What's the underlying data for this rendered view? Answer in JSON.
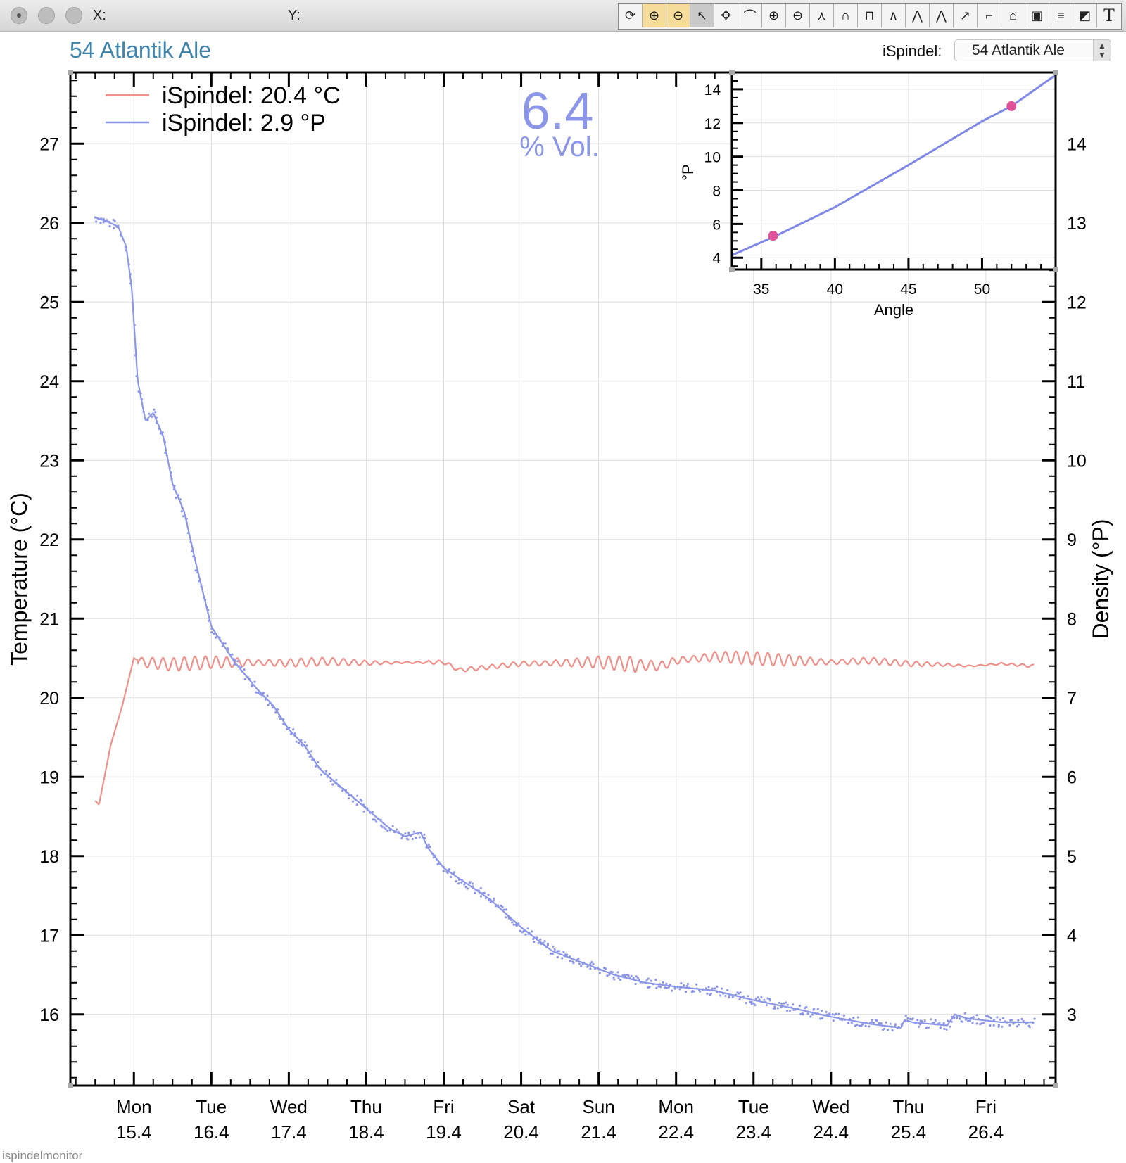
{
  "window": {
    "x_label": "X:",
    "y_label": "Y:",
    "toolbar": [
      {
        "icon": "refresh-icon",
        "glyph": "⟳"
      },
      {
        "icon": "zoom-in-x-icon",
        "glyph": "⊕"
      },
      {
        "icon": "zoom-out-x-icon",
        "glyph": "⊖"
      },
      {
        "icon": "pointer-icon",
        "glyph": "↖"
      },
      {
        "icon": "pan-icon",
        "glyph": "✥"
      },
      {
        "icon": "peak-zoom-icon",
        "glyph": "⌒"
      },
      {
        "icon": "zoom-in-icon",
        "glyph": "⊕"
      },
      {
        "icon": "zoom-out-icon",
        "glyph": "⊖"
      },
      {
        "icon": "fit-peak-icon",
        "glyph": "⋏"
      },
      {
        "icon": "gauss-icon",
        "glyph": "∩"
      },
      {
        "icon": "marker-icon",
        "glyph": "⊓"
      },
      {
        "icon": "peak-icon",
        "glyph": "∧"
      },
      {
        "icon": "peak-split-icon",
        "glyph": "⋀"
      },
      {
        "icon": "peak-sharp-icon",
        "glyph": "⋀"
      },
      {
        "icon": "curve-point-icon",
        "glyph": "↗"
      },
      {
        "icon": "rise-icon",
        "glyph": "⌐"
      },
      {
        "icon": "box-peak-icon",
        "glyph": "⌂"
      },
      {
        "icon": "overlay-icon",
        "glyph": "▣"
      },
      {
        "icon": "legend-icon",
        "glyph": "≡"
      },
      {
        "icon": "shapes-icon",
        "glyph": "◩"
      },
      {
        "icon": "text-icon",
        "glyph": "T"
      }
    ]
  },
  "header": {
    "title": "54 Atlantik Ale",
    "selector_label": "iSpindel:",
    "selector_value": "54 Atlantik Ale"
  },
  "chart_data": [
    {
      "type": "line",
      "ylabel_left": "Temperature (°C)",
      "ylabel_right": "Density (°P)",
      "xlabel": "",
      "x_unit": "day of April 2018",
      "xlim": [
        14.18,
        26.9
      ],
      "ylim_left": [
        15.1,
        27.9
      ],
      "ylim_right": [
        2.1,
        14.9
      ],
      "y_ticks_left": [
        16,
        17,
        18,
        19,
        20,
        21,
        22,
        23,
        24,
        25,
        26,
        27
      ],
      "y_ticks_right": [
        3,
        4,
        5,
        6,
        7,
        8,
        9,
        10,
        11,
        12,
        13,
        14
      ],
      "x_ticks": [
        {
          "x": 15,
          "day": "Mon",
          "date": "15.4"
        },
        {
          "x": 16,
          "day": "Tue",
          "date": "16.4"
        },
        {
          "x": 17,
          "day": "Wed",
          "date": "17.4"
        },
        {
          "x": 18,
          "day": "Thu",
          "date": "18.4"
        },
        {
          "x": 19,
          "day": "Fri",
          "date": "19.4"
        },
        {
          "x": 20,
          "day": "Sat",
          "date": "20.4"
        },
        {
          "x": 21,
          "day": "Sun",
          "date": "21.4"
        },
        {
          "x": 22,
          "day": "Mon",
          "date": "22.4"
        },
        {
          "x": 23,
          "day": "Tue",
          "date": "23.4"
        },
        {
          "x": 24,
          "day": "Wed",
          "date": "24.4"
        },
        {
          "x": 25,
          "day": "Thu",
          "date": "25.4"
        },
        {
          "x": 26,
          "day": "Fri",
          "date": "26.4"
        }
      ],
      "grid": true,
      "legend_position": "top-left",
      "annotation": {
        "value": "6.4",
        "unit": "% Vol.",
        "color": "#8c96e8"
      },
      "series": [
        {
          "name": "iSpindel: 20.4 °C",
          "axis": "left",
          "color": "#f0908a",
          "oscillating": true,
          "x": [
            14.5,
            14.55,
            14.7,
            14.85,
            14.95,
            15.0,
            15.1,
            15.5,
            16.0,
            17.0,
            17.5,
            18.0,
            19.0,
            19.2,
            20.0,
            21.0,
            21.8,
            22.0,
            22.5,
            23.0,
            23.5,
            24.0,
            24.5,
            25.0,
            25.4,
            25.8,
            26.2,
            26.62
          ],
          "y": [
            18.7,
            18.65,
            19.4,
            19.9,
            20.3,
            20.5,
            20.45,
            20.42,
            20.45,
            20.44,
            20.46,
            20.44,
            20.45,
            20.35,
            20.43,
            20.45,
            20.4,
            20.47,
            20.52,
            20.5,
            20.47,
            20.45,
            20.47,
            20.43,
            20.42,
            20.4,
            20.43,
            20.4
          ]
        },
        {
          "name": "iSpindel: 2.9 °P",
          "axis": "right",
          "color": "#8c96e8",
          "x": [
            14.5,
            14.65,
            14.8,
            14.9,
            14.97,
            15.05,
            15.15,
            15.25,
            15.38,
            15.5,
            15.65,
            15.8,
            16.0,
            16.3,
            16.6,
            16.8,
            17.0,
            17.2,
            17.4,
            17.7,
            18.0,
            18.3,
            18.5,
            18.7,
            18.8,
            19.0,
            19.3,
            19.6,
            20.0,
            20.4,
            20.8,
            21.2,
            21.6,
            22.0,
            22.5,
            23.0,
            23.5,
            24.0,
            24.5,
            24.9,
            24.95,
            25.05,
            25.5,
            25.6,
            25.75,
            26.2,
            26.62
          ],
          "y": [
            13.07,
            13.02,
            12.95,
            12.7,
            12.2,
            11.0,
            10.5,
            10.6,
            10.3,
            9.7,
            9.35,
            8.7,
            7.9,
            7.45,
            7.1,
            6.9,
            6.6,
            6.4,
            6.1,
            5.85,
            5.6,
            5.35,
            5.25,
            5.3,
            5.1,
            4.85,
            4.65,
            4.45,
            4.1,
            3.8,
            3.65,
            3.5,
            3.4,
            3.35,
            3.3,
            3.18,
            3.08,
            2.97,
            2.88,
            2.83,
            2.93,
            2.9,
            2.86,
            3.0,
            2.95,
            2.9,
            2.9
          ]
        }
      ]
    },
    {
      "type": "line",
      "xlabel": "Angle",
      "ylabel": "°P",
      "xlim": [
        33,
        55
      ],
      "ylim": [
        3.3,
        15
      ],
      "x_ticks": [
        35,
        40,
        45,
        50
      ],
      "y_ticks": [
        4,
        6,
        8,
        10,
        12,
        14
      ],
      "grid": true,
      "series": [
        {
          "color": "#7f88e6",
          "x": [
            33,
            36,
            40,
            45,
            50,
            52,
            55
          ],
          "y": [
            4.15,
            5.3,
            7.0,
            9.5,
            12.1,
            13.0,
            14.85
          ]
        }
      ],
      "calibration_points": {
        "color": "#e0539b",
        "x": [
          35.8,
          52.0
        ],
        "y": [
          5.3,
          13.0
        ]
      }
    }
  ],
  "footer": "ispindelmonitor"
}
